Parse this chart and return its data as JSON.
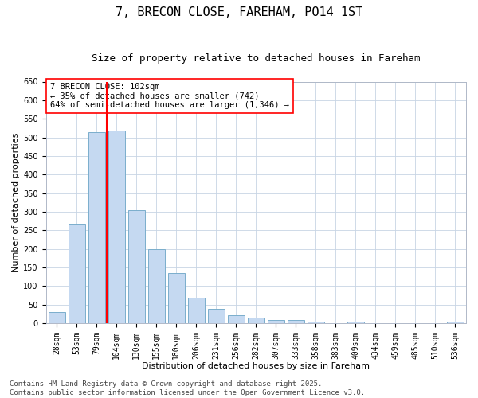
{
  "title": "7, BRECON CLOSE, FAREHAM, PO14 1ST",
  "subtitle": "Size of property relative to detached houses in Fareham",
  "xlabel": "Distribution of detached houses by size in Fareham",
  "ylabel": "Number of detached properties",
  "categories": [
    "28sqm",
    "53sqm",
    "79sqm",
    "104sqm",
    "130sqm",
    "155sqm",
    "180sqm",
    "206sqm",
    "231sqm",
    "256sqm",
    "282sqm",
    "307sqm",
    "333sqm",
    "358sqm",
    "383sqm",
    "409sqm",
    "434sqm",
    "459sqm",
    "485sqm",
    "510sqm",
    "536sqm"
  ],
  "values": [
    30,
    265,
    515,
    518,
    303,
    198,
    134,
    68,
    38,
    21,
    15,
    9,
    8,
    5,
    0,
    4,
    0,
    0,
    0,
    0,
    5
  ],
  "bar_color": "#c5d9f1",
  "bar_edge_color": "#7aaecc",
  "vline_x_index": 2,
  "vline_color": "red",
  "ylim": [
    0,
    650
  ],
  "yticks": [
    0,
    50,
    100,
    150,
    200,
    250,
    300,
    350,
    400,
    450,
    500,
    550,
    600,
    650
  ],
  "annotation_text": "7 BRECON CLOSE: 102sqm\n← 35% of detached houses are smaller (742)\n64% of semi-detached houses are larger (1,346) →",
  "annotation_box_color": "white",
  "annotation_box_edge_color": "red",
  "footer_line1": "Contains HM Land Registry data © Crown copyright and database right 2025.",
  "footer_line2": "Contains public sector information licensed under the Open Government Licence v3.0.",
  "background_color": "white",
  "grid_color": "#c8d4e4",
  "title_fontsize": 11,
  "subtitle_fontsize": 9,
  "axis_label_fontsize": 8,
  "tick_fontsize": 7,
  "annotation_fontsize": 7.5,
  "footer_fontsize": 6.5,
  "bar_width": 0.85
}
